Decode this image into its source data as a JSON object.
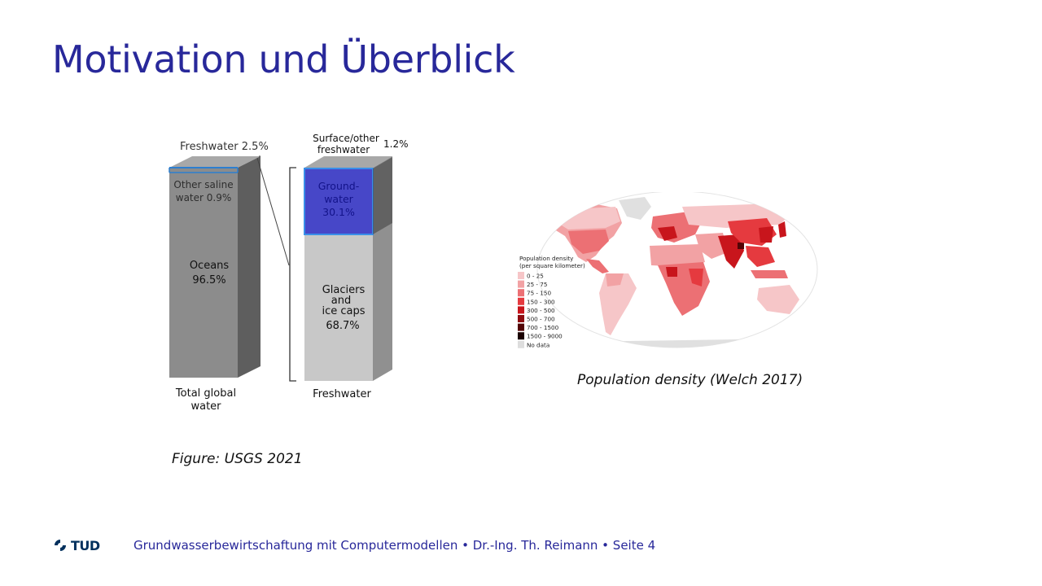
{
  "slide": {
    "title": "Motivation und Überblick"
  },
  "water_figure": {
    "labels": {
      "freshwater_share": "Freshwater 2.5%",
      "other_saline_line1": "Other saline",
      "other_saline_line2": "water 0.9%",
      "oceans_line1": "Oceans",
      "oceans_line2": "96.5%",
      "total_line1": "Total global",
      "total_line2": "water",
      "surface_line1": "Surface/other",
      "surface_line2": "freshwater",
      "surface_pct": "1.2%",
      "groundwater_line1": "Ground-",
      "groundwater_line2": "water",
      "groundwater_line3": "30.1%",
      "glaciers_line1": "Glaciers",
      "glaciers_line2": "and",
      "glaciers_line3": "ice caps",
      "glaciers_line4": "68.7%",
      "freshwater_bar": "Freshwater"
    },
    "colors": {
      "bar_front": "#8c8c8c",
      "bar_side": "#5e5e5e",
      "bar_top": "#a8a8a8",
      "light_front": "#c8c8c8",
      "light_side": "#909090",
      "groundwater": "#4747c8",
      "groundwater_border": "#3a8fe8",
      "groundwater_text": "#13138a"
    },
    "caption": "Figure: USGS 2021"
  },
  "map_figure": {
    "legend_title_line1": "Population density",
    "legend_title_line2": "(per square kilometer)",
    "legend_items": [
      {
        "label": "0 - 25",
        "color": "#f6c6c8"
      },
      {
        "label": "25 - 75",
        "color": "#f2a2a4"
      },
      {
        "label": "75 - 150",
        "color": "#ec7074"
      },
      {
        "label": "150 - 300",
        "color": "#e53a3f"
      },
      {
        "label": "300 - 500",
        "color": "#c8151c"
      },
      {
        "label": "500 - 700",
        "color": "#8e0b10"
      },
      {
        "label": "700 - 1500",
        "color": "#520406"
      },
      {
        "label": "1500 - 9000",
        "color": "#1a0000"
      },
      {
        "label": "No data",
        "color": "#dddddd"
      }
    ],
    "caption": "Population density (Welch 2017)"
  },
  "footer": {
    "logo": "TUD",
    "text": "Grundwasserbewirtschaftung mit Computermodellen • Dr.-Ing. Th. Reimann • Seite 4"
  }
}
